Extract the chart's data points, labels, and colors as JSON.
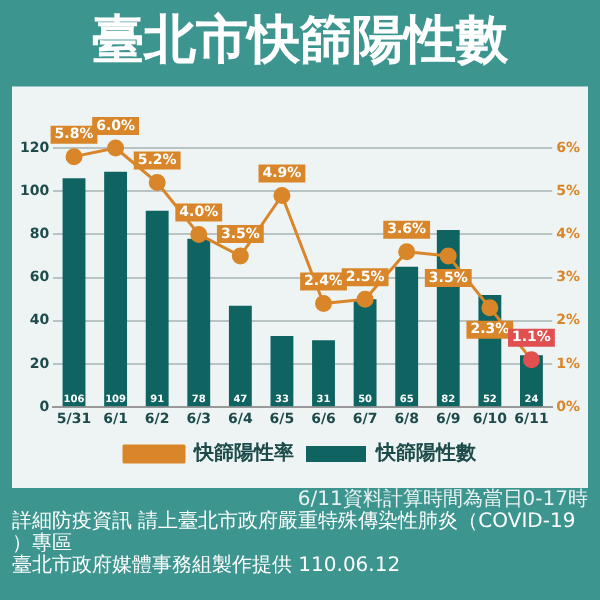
{
  "chart_data": {
    "type": "bar",
    "title": "臺北市快篩陽性數",
    "categories": [
      "5/31",
      "6/1",
      "6/2",
      "6/3",
      "6/4",
      "6/5",
      "6/6",
      "6/7",
      "6/8",
      "6/9",
      "6/10",
      "6/11"
    ],
    "series": [
      {
        "name": "快篩陽性數",
        "color": "#0f6462",
        "values": [
          106,
          109,
          91,
          78,
          47,
          33,
          31,
          50,
          65,
          82,
          52,
          24
        ],
        "value_labels": [
          "106",
          "109",
          "91",
          "78",
          "47",
          "33",
          "31",
          "50",
          "65",
          "82",
          "52",
          "24"
        ]
      },
      {
        "name": "快篩陽性率",
        "type": "line",
        "axis": "y2",
        "color": "#d9862a",
        "colors": [
          "#d9862a",
          "#d9862a",
          "#d9862a",
          "#d9862a",
          "#d9862a",
          "#d9862a",
          "#d9862a",
          "#d9862a",
          "#d9862a",
          "#d9862a",
          "#d9862a",
          "#e05050"
        ],
        "values": [
          5.8,
          6.0,
          5.2,
          4.0,
          3.5,
          4.9,
          2.4,
          2.5,
          3.6,
          3.5,
          2.3,
          1.1
        ],
        "value_labels": [
          "5.8%",
          "6.0%",
          "5.2%",
          "4.0%",
          "3.5%",
          "4.9%",
          "2.4%",
          "2.5%",
          "3.6%",
          "3.5%",
          "2.3%",
          "1.1%"
        ]
      }
    ],
    "ylim": [
      0,
      130
    ],
    "yticks": [
      0,
      20,
      40,
      60,
      80,
      100,
      120
    ],
    "y2lim": [
      0,
      6.5
    ],
    "y2ticks": [
      {
        "value": 0,
        "label": "0%"
      },
      {
        "value": 1,
        "label": "1%"
      },
      {
        "value": 2,
        "label": "2%"
      },
      {
        "value": 3,
        "label": "3%"
      },
      {
        "value": 4,
        "label": "4%"
      },
      {
        "value": 5,
        "label": "5%"
      },
      {
        "value": 6,
        "label": "6%"
      }
    ],
    "grid": "y",
    "legend": "bottom",
    "marker": "circle",
    "annotations": [
      "6/11資料計算時間為當日0-17時",
      "詳細防疫資訊 請上臺北市政府嚴重特殊傳染性肺炎（COVID-19）專區",
      "臺北市政府媒體事務組製作提供 110.06.12"
    ]
  }
}
